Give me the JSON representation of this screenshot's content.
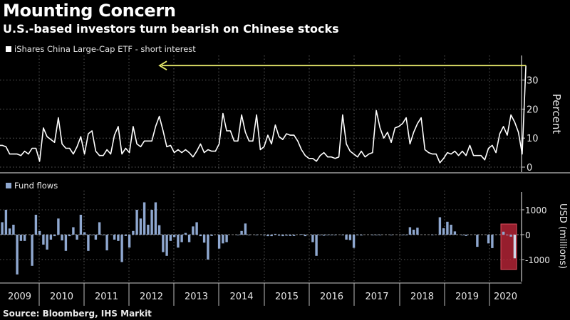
{
  "header": {
    "title": "Mounting Concern",
    "subtitle": "U.S.-based investors turn bearish on Chinese stocks"
  },
  "footer": {
    "source": "Source: Bloomberg, IHS Markit"
  },
  "colors": {
    "line": "#ffffff",
    "bars": "#8fa8d0",
    "arrow": "#e6e86a",
    "highlight": "#c8283c",
    "grid": "#5a5a5a"
  },
  "chart_data": [
    {
      "type": "line",
      "legend": "iShares China Large-Cap ETF - short interest",
      "ylabel": "Percent",
      "ylim": [
        -2,
        38
      ],
      "yticks": [
        0,
        10,
        20,
        30
      ],
      "x_start": "2009-02",
      "frequency": "monthly",
      "grid": true,
      "annotation": "arrow pointing from latest spike back toward 2009 level",
      "values": [
        7.5,
        7.5,
        7,
        4.5,
        4.5,
        4.5,
        4,
        5.5,
        4.5,
        6.5,
        6.5,
        2,
        13.5,
        10.5,
        9.5,
        8.5,
        17,
        8,
        6.5,
        6.5,
        4.5,
        7,
        10.5,
        4.5,
        11.5,
        12.5,
        5.5,
        4,
        4,
        6,
        4.5,
        11,
        14,
        4.5,
        6.5,
        5,
        14,
        8,
        7,
        9,
        9,
        9,
        14,
        17.5,
        12.5,
        7,
        7.5,
        5,
        6,
        5,
        6,
        5,
        3.5,
        5.5,
        8,
        5,
        6,
        5.5,
        5.5,
        8,
        18.5,
        12.5,
        12.5,
        9,
        9,
        18,
        12,
        9,
        9,
        18,
        6,
        7,
        11,
        8,
        14.5,
        10.5,
        9.5,
        11.5,
        11,
        11,
        9,
        6,
        4,
        3,
        3,
        2,
        4,
        5,
        3.5,
        3.5,
        3,
        3.5,
        18,
        8,
        5.5,
        4.5,
        3.5,
        5.5,
        3.5,
        4.5,
        5,
        19.5,
        13.5,
        10,
        12,
        8.5,
        13.5,
        14,
        15,
        17,
        8,
        12,
        15,
        17,
        6,
        5,
        4.5,
        4.5,
        1.5,
        3,
        5,
        4.5,
        5.5,
        4,
        5.5,
        4,
        7.5,
        4,
        4,
        4,
        2.5,
        6.5,
        7.5,
        5,
        11.5,
        14,
        11,
        18,
        15.5,
        12,
        4.5,
        35
      ]
    },
    {
      "type": "bar",
      "legend": "Fund flows",
      "ylabel": "USD (millions)",
      "ylim": [
        -1650,
        1650
      ],
      "yticks": [
        -1000,
        0,
        1000
      ],
      "x_start": "2009-02",
      "frequency": "monthly",
      "grid": true,
      "xtick_labels": [
        "2009",
        "2010",
        "2011",
        "2012",
        "2013",
        "2014",
        "2015",
        "2016",
        "2017",
        "2018",
        "2019",
        "2020"
      ],
      "annotation": "red box highlighting 2020 outflows",
      "values": [
        -180,
        500,
        1000,
        250,
        400,
        -1600,
        -250,
        -250,
        0,
        -1250,
        800,
        150,
        -400,
        -600,
        -200,
        -60,
        650,
        -230,
        -650,
        -60,
        300,
        -200,
        800,
        100,
        -650,
        -20,
        -200,
        500,
        -20,
        -630,
        0,
        -200,
        -250,
        -1100,
        -50,
        -520,
        150,
        1000,
        650,
        1300,
        400,
        1000,
        1300,
        380,
        -700,
        -850,
        -250,
        -100,
        -520,
        -300,
        70,
        -300,
        330,
        500,
        -60,
        -320,
        -1000,
        -50,
        0,
        -560,
        -350,
        -300,
        0,
        0,
        -20,
        150,
        450,
        -20,
        0,
        -20,
        0,
        -20,
        -60,
        -60,
        30,
        -40,
        -60,
        -40,
        -50,
        -50,
        0,
        20,
        -60,
        0,
        -300,
        -850,
        -20,
        -40,
        -20,
        -20,
        -20,
        0,
        -20,
        -200,
        -220,
        -530,
        -20,
        -30,
        0,
        0,
        -20,
        -20,
        -20,
        0,
        0,
        -20,
        0,
        0,
        -20,
        -20,
        300,
        200,
        280,
        0,
        0,
        0,
        -20,
        0,
        700,
        260,
        520,
        400,
        130,
        0,
        -20,
        -50,
        0,
        0,
        -490,
        0,
        0,
        -350,
        -540,
        0,
        0,
        120,
        -20,
        -80,
        -950
      ]
    }
  ]
}
